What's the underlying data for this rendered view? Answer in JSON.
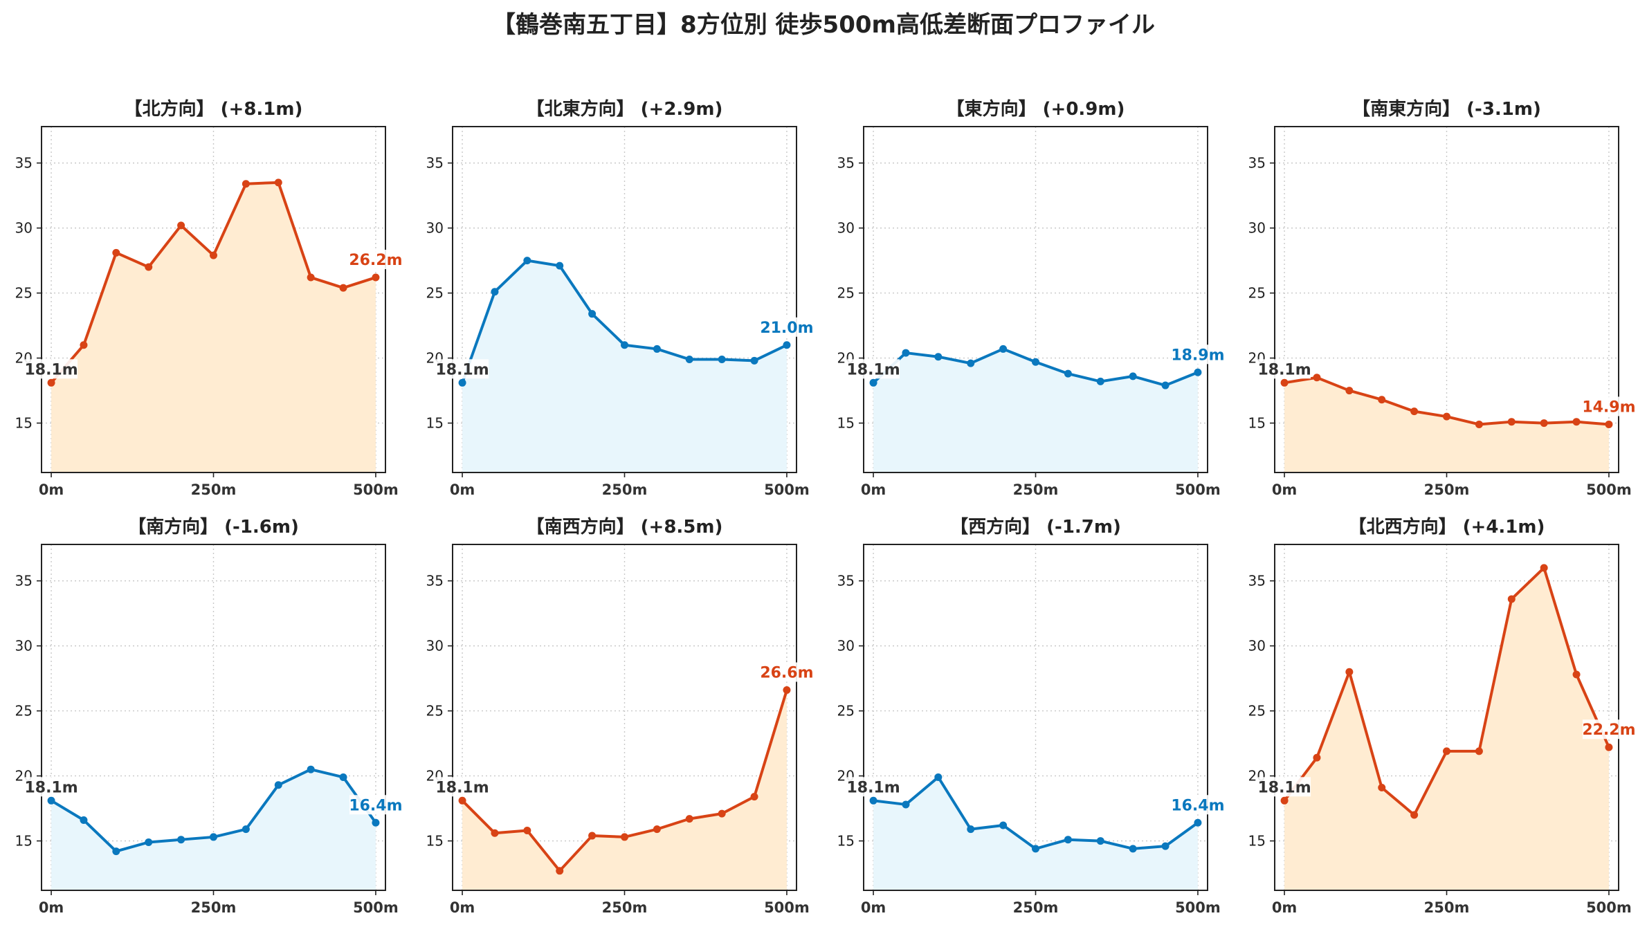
{
  "figure": {
    "title": "【鶴巻南五丁目】8方位別 徒歩500m高低差断面プロファイル"
  },
  "colors": {
    "up_line": "#d84315",
    "up_fill": "#ffecd2",
    "down_line": "#0a78be",
    "down_fill": "#e8f6fc",
    "start_label": "#333333",
    "grid": "#c8c8c8"
  },
  "chart_data": [
    {
      "type": "area",
      "title": "【北方向】 (+8.1m)",
      "trend": "up",
      "x": [
        0,
        50,
        100,
        150,
        200,
        250,
        300,
        350,
        400,
        450,
        500
      ],
      "y": [
        18.1,
        21.0,
        28.1,
        27.0,
        30.2,
        27.9,
        33.4,
        33.5,
        26.2,
        25.4,
        26.2
      ],
      "start_label": "18.1m",
      "end_label": "26.2m",
      "xticks": [
        "0m",
        "250m",
        "500m"
      ],
      "xtick_values": [
        0,
        250,
        500
      ],
      "yticks": [
        15,
        20,
        25,
        30,
        35
      ],
      "xlim": [
        -15,
        515
      ],
      "ylim": [
        11.2,
        37.8
      ],
      "grid": true
    },
    {
      "type": "area",
      "title": "【北東方向】 (+2.9m)",
      "trend": "down",
      "x": [
        0,
        50,
        100,
        150,
        200,
        250,
        300,
        350,
        400,
        450,
        500
      ],
      "y": [
        18.1,
        25.1,
        27.5,
        27.1,
        23.4,
        21.0,
        20.7,
        19.9,
        19.9,
        19.8,
        21.0
      ],
      "start_label": "18.1m",
      "end_label": "21.0m",
      "xticks": [
        "0m",
        "250m",
        "500m"
      ],
      "xtick_values": [
        0,
        250,
        500
      ],
      "yticks": [
        15,
        20,
        25,
        30,
        35
      ],
      "xlim": [
        -15,
        515
      ],
      "ylim": [
        11.2,
        37.8
      ],
      "grid": true
    },
    {
      "type": "area",
      "title": "【東方向】 (+0.9m)",
      "trend": "down",
      "x": [
        0,
        50,
        100,
        150,
        200,
        250,
        300,
        350,
        400,
        450,
        500
      ],
      "y": [
        18.1,
        20.4,
        20.1,
        19.6,
        20.7,
        19.7,
        18.8,
        18.2,
        18.6,
        17.9,
        18.9
      ],
      "start_label": "18.1m",
      "end_label": "18.9m",
      "xticks": [
        "0m",
        "250m",
        "500m"
      ],
      "xtick_values": [
        0,
        250,
        500
      ],
      "yticks": [
        15,
        20,
        25,
        30,
        35
      ],
      "xlim": [
        -15,
        515
      ],
      "ylim": [
        11.2,
        37.8
      ],
      "grid": true
    },
    {
      "type": "area",
      "title": "【南東方向】 (-3.1m)",
      "trend": "up",
      "x": [
        0,
        50,
        100,
        150,
        200,
        250,
        300,
        350,
        400,
        450,
        500
      ],
      "y": [
        18.1,
        18.5,
        17.5,
        16.8,
        15.9,
        15.5,
        14.9,
        15.1,
        15.0,
        15.1,
        14.9
      ],
      "start_label": "18.1m",
      "end_label": "14.9m",
      "xticks": [
        "0m",
        "250m",
        "500m"
      ],
      "xtick_values": [
        0,
        250,
        500
      ],
      "yticks": [
        15,
        20,
        25,
        30,
        35
      ],
      "xlim": [
        -15,
        515
      ],
      "ylim": [
        11.2,
        37.8
      ],
      "grid": true
    },
    {
      "type": "area",
      "title": "【南方向】 (-1.6m)",
      "trend": "down",
      "x": [
        0,
        50,
        100,
        150,
        200,
        250,
        300,
        350,
        400,
        450,
        500
      ],
      "y": [
        18.1,
        16.6,
        14.2,
        14.9,
        15.1,
        15.3,
        15.9,
        19.3,
        20.5,
        19.9,
        16.4
      ],
      "start_label": "18.1m",
      "end_label": "16.4m",
      "xticks": [
        "0m",
        "250m",
        "500m"
      ],
      "xtick_values": [
        0,
        250,
        500
      ],
      "yticks": [
        15,
        20,
        25,
        30,
        35
      ],
      "xlim": [
        -15,
        515
      ],
      "ylim": [
        11.2,
        37.8
      ],
      "grid": true
    },
    {
      "type": "area",
      "title": "【南西方向】 (+8.5m)",
      "trend": "up",
      "x": [
        0,
        50,
        100,
        150,
        200,
        250,
        300,
        350,
        400,
        450,
        500
      ],
      "y": [
        18.1,
        15.6,
        15.8,
        12.7,
        15.4,
        15.3,
        15.9,
        16.7,
        17.1,
        18.4,
        26.6
      ],
      "start_label": "18.1m",
      "end_label": "26.6m",
      "xticks": [
        "0m",
        "250m",
        "500m"
      ],
      "xtick_values": [
        0,
        250,
        500
      ],
      "yticks": [
        15,
        20,
        25,
        30,
        35
      ],
      "xlim": [
        -15,
        515
      ],
      "ylim": [
        11.2,
        37.8
      ],
      "grid": true
    },
    {
      "type": "area",
      "title": "【西方向】 (-1.7m)",
      "trend": "down",
      "x": [
        0,
        50,
        100,
        150,
        200,
        250,
        300,
        350,
        400,
        450,
        500
      ],
      "y": [
        18.1,
        17.8,
        19.9,
        15.9,
        16.2,
        14.4,
        15.1,
        15.0,
        14.4,
        14.6,
        16.4
      ],
      "start_label": "18.1m",
      "end_label": "16.4m",
      "xticks": [
        "0m",
        "250m",
        "500m"
      ],
      "xtick_values": [
        0,
        250,
        500
      ],
      "yticks": [
        15,
        20,
        25,
        30,
        35
      ],
      "xlim": [
        -15,
        515
      ],
      "ylim": [
        11.2,
        37.8
      ],
      "grid": true
    },
    {
      "type": "area",
      "title": "【北西方向】 (+4.1m)",
      "trend": "up",
      "x": [
        0,
        50,
        100,
        150,
        200,
        250,
        300,
        350,
        400,
        450,
        500
      ],
      "y": [
        18.1,
        21.4,
        28.0,
        19.1,
        17.0,
        21.9,
        21.9,
        33.6,
        36.0,
        27.8,
        22.2
      ],
      "start_label": "18.1m",
      "end_label": "22.2m",
      "xticks": [
        "0m",
        "250m",
        "500m"
      ],
      "xtick_values": [
        0,
        250,
        500
      ],
      "yticks": [
        15,
        20,
        25,
        30,
        35
      ],
      "xlim": [
        -15,
        515
      ],
      "ylim": [
        11.2,
        37.8
      ],
      "grid": true
    }
  ]
}
